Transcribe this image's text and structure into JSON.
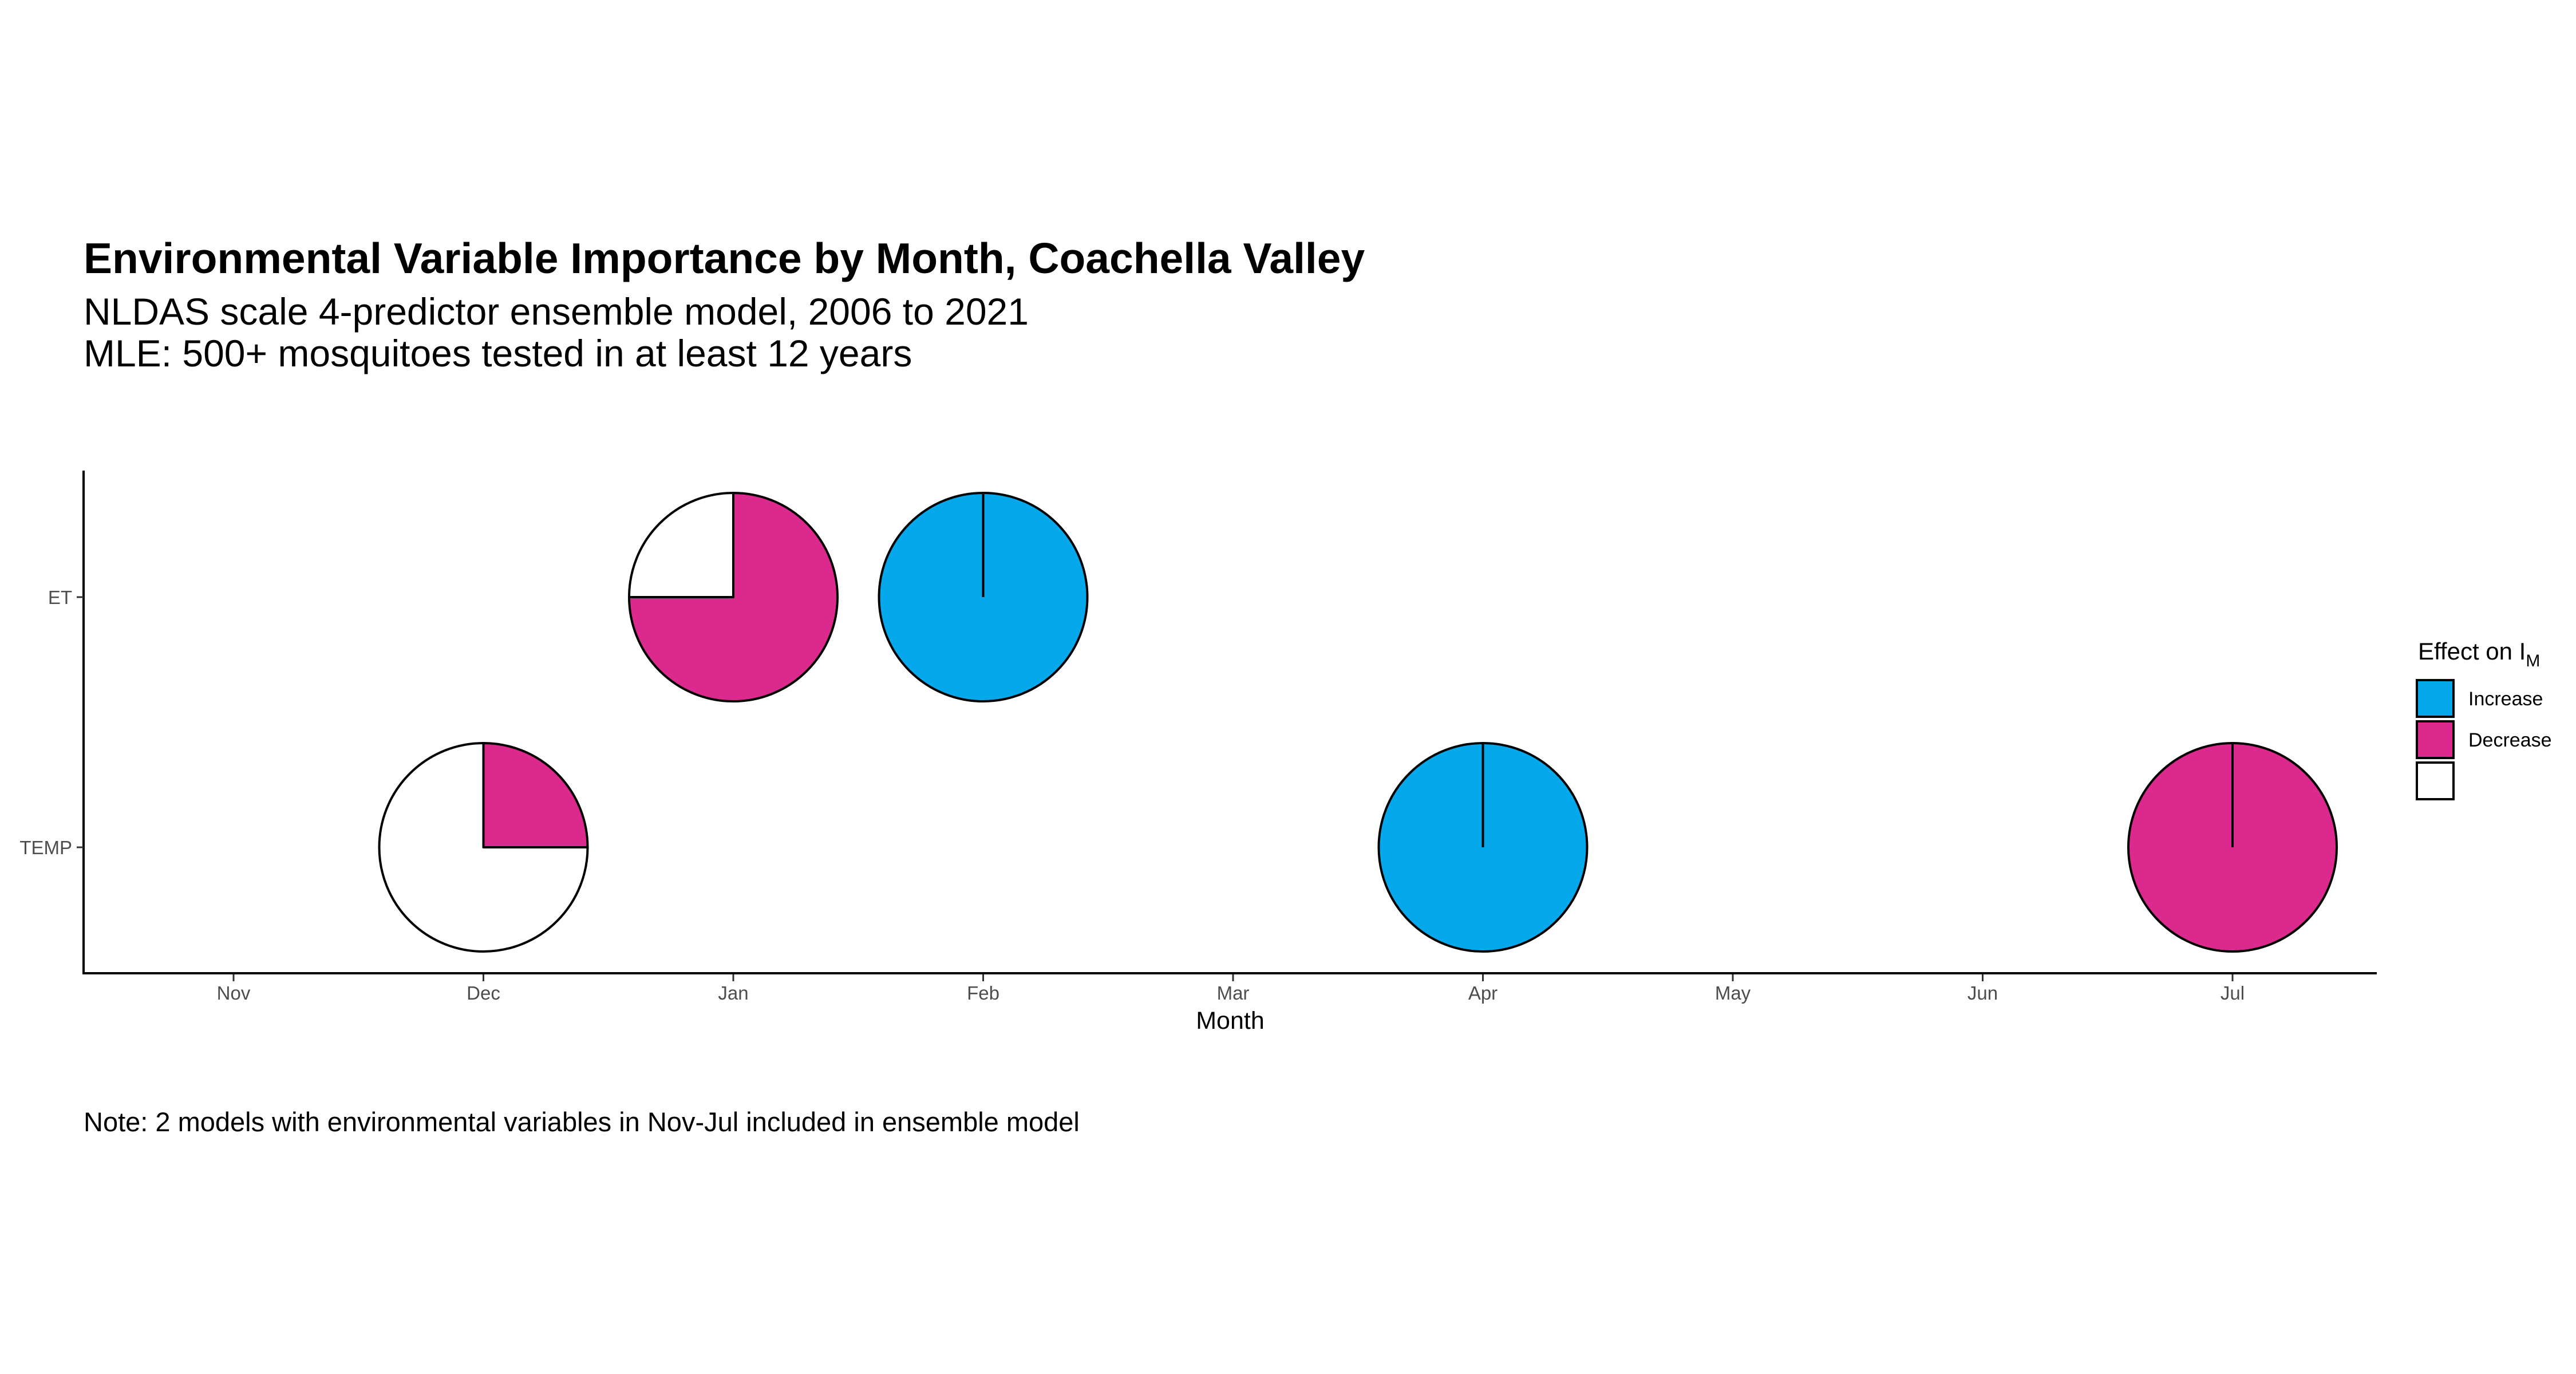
{
  "chart_data": {
    "type": "pie",
    "title": "Environmental Variable Importance by Month, Coachella Valley",
    "subtitle": [
      "NLDAS scale 4-predictor ensemble model, 2006 to 2021",
      "MLE: 500+ mosquitoes tested in at least 12 years"
    ],
    "xlabel": "Month",
    "ylabel": "",
    "x_categories": [
      "Nov",
      "Dec",
      "Jan",
      "Feb",
      "Mar",
      "Apr",
      "May",
      "Jun",
      "Jul"
    ],
    "y_categories": [
      "TEMP",
      "ET"
    ],
    "legend": {
      "title_main": "Effect on I",
      "title_sub": "M",
      "position": "right",
      "entries": [
        {
          "label": "Increase",
          "color": "#05A9EB"
        },
        {
          "label": "Decrease",
          "color": "#DC298D"
        },
        {
          "label": "",
          "color": "#FFFFFF"
        }
      ]
    },
    "pies": [
      {
        "month": "Dec",
        "variable": "TEMP",
        "increase": 0,
        "decrease": 0.5,
        "none": 1.5
      },
      {
        "month": "Jan",
        "variable": "ET",
        "increase": 0,
        "decrease": 1.5,
        "none": 0.5
      },
      {
        "month": "Feb",
        "variable": "ET",
        "increase": 2,
        "decrease": 0,
        "none": 0
      },
      {
        "month": "Apr",
        "variable": "TEMP",
        "increase": 2,
        "decrease": 0,
        "none": 0
      },
      {
        "month": "Jul",
        "variable": "TEMP",
        "increase": 0,
        "decrease": 2,
        "none": 0
      }
    ],
    "grid": false,
    "note": "Note: 2 models with environmental variables in Nov-Jul included in ensemble model"
  }
}
